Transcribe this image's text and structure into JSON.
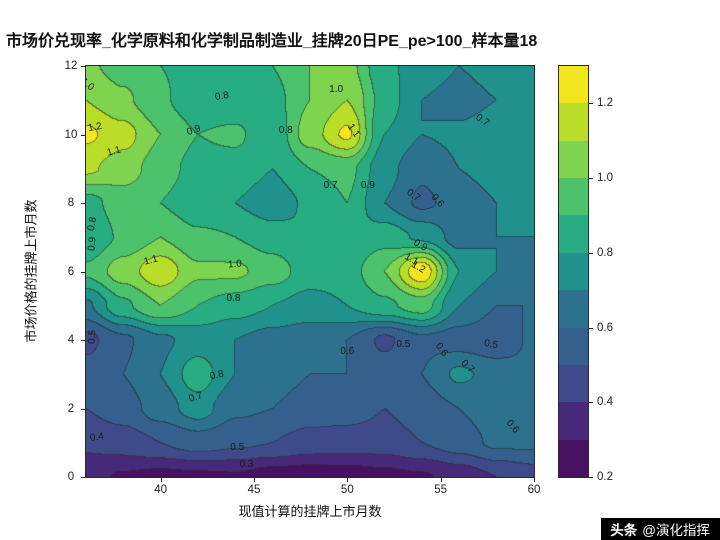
{
  "title": "市场价兑现率_化学原料和化学制品制造业_挂牌20日PE_pe>100_样本量18",
  "watermark": {
    "brand": "头条",
    "handle": "@演化指挥"
  },
  "chart_data": {
    "type": "heatmap",
    "subtype": "filled-contour",
    "title": "市场价兑现率_化学原料和化学制品制造业_挂牌20日PE_pe>100_样本量18",
    "xlabel": "现值计算的挂牌上市月数",
    "ylabel": "市场价格的挂牌上市月数",
    "xlim": [
      36,
      60
    ],
    "ylim": [
      0,
      12
    ],
    "xticks": [
      40,
      45,
      50,
      55,
      60
    ],
    "yticks": [
      0,
      2,
      4,
      6,
      8,
      10,
      12
    ],
    "x": [
      36,
      38,
      40,
      42,
      44,
      46,
      48,
      50,
      52,
      54,
      56,
      58,
      60
    ],
    "y": [
      0,
      1,
      2,
      3,
      4,
      5,
      6,
      7,
      8,
      9,
      10,
      11,
      12
    ],
    "z": [
      [
        0.33,
        0.29,
        0.27,
        0.28,
        0.29,
        0.25,
        0.24,
        0.25,
        0.27,
        0.29,
        0.34,
        0.4,
        0.45
      ],
      [
        0.42,
        0.45,
        0.5,
        0.55,
        0.52,
        0.5,
        0.46,
        0.45,
        0.45,
        0.5,
        0.55,
        0.62,
        0.62
      ],
      [
        0.5,
        0.55,
        0.65,
        0.75,
        0.62,
        0.6,
        0.56,
        0.55,
        0.5,
        0.55,
        0.6,
        0.66,
        0.7
      ],
      [
        0.54,
        0.6,
        0.7,
        0.86,
        0.7,
        0.64,
        0.6,
        0.6,
        0.55,
        0.6,
        0.72,
        0.66,
        0.62
      ],
      [
        0.47,
        0.58,
        0.68,
        0.74,
        0.7,
        0.66,
        0.64,
        0.6,
        0.48,
        0.58,
        0.55,
        0.52,
        0.62
      ],
      [
        0.68,
        0.88,
        1.0,
        0.9,
        0.85,
        0.8,
        0.76,
        0.8,
        0.88,
        0.95,
        0.7,
        0.6,
        0.6
      ],
      [
        0.92,
        1.05,
        1.17,
        1.02,
        1.02,
        0.95,
        0.85,
        0.85,
        1.0,
        1.28,
        0.8,
        0.7,
        0.64
      ],
      [
        0.8,
        0.92,
        1.0,
        0.92,
        0.9,
        0.85,
        0.8,
        0.8,
        0.86,
        0.78,
        0.66,
        0.7,
        0.7
      ],
      [
        0.86,
        0.95,
        0.9,
        0.82,
        0.8,
        0.74,
        0.82,
        0.9,
        0.7,
        0.58,
        0.64,
        0.7,
        0.74
      ],
      [
        1.12,
        1.05,
        0.95,
        0.86,
        0.86,
        0.8,
        0.9,
        0.93,
        0.74,
        0.62,
        0.7,
        0.74,
        0.78
      ],
      [
        1.22,
        1.14,
        1.0,
        0.9,
        0.92,
        0.82,
        1.05,
        1.22,
        0.8,
        0.7,
        0.72,
        0.76,
        0.8
      ],
      [
        1.1,
        1.02,
        0.92,
        0.82,
        0.82,
        0.86,
        1.0,
        1.1,
        0.86,
        0.7,
        0.66,
        0.7,
        0.74
      ],
      [
        1.02,
        0.96,
        0.9,
        0.86,
        0.8,
        0.9,
        1.0,
        1.04,
        0.82,
        0.76,
        0.7,
        0.74,
        0.8
      ]
    ],
    "levels": [
      0.2,
      0.3,
      0.4,
      0.5,
      0.6,
      0.7,
      0.8,
      0.9,
      1.0,
      1.1,
      1.2,
      1.3
    ],
    "band_colors": [
      "#471063",
      "#482878",
      "#3f4a8a",
      "#35608d",
      "#2c728e",
      "#21918d",
      "#27ad81",
      "#4cc26c",
      "#7ed34f",
      "#bade28",
      "#f4e61e"
    ],
    "line_color_rgb": [
      35,
      35,
      35
    ],
    "line_alpha": 0.55,
    "colorbar": {
      "min": 0.2,
      "max": 1.3,
      "ticks": [
        "0.2",
        "0.4",
        "0.6",
        "0.8",
        "1.0",
        "1.2"
      ]
    },
    "contour_labels": [
      {
        "t": "1.0",
        "x": 36.05,
        "y": 11.45,
        "r": -40
      },
      {
        "t": "0.8",
        "x": 43.3,
        "y": 11.1,
        "r": 10
      },
      {
        "t": "1.0",
        "x": 49.4,
        "y": 11.3,
        "r": 0
      },
      {
        "t": "0.7",
        "x": 57.2,
        "y": 10.4,
        "r": -35
      },
      {
        "t": "1.2",
        "x": 36.5,
        "y": 10.2,
        "r": 10
      },
      {
        "t": "1.1",
        "x": 37.5,
        "y": 9.5,
        "r": 15
      },
      {
        "t": "0.9",
        "x": 41.8,
        "y": 10.1,
        "r": 20
      },
      {
        "t": "0.8",
        "x": 46.7,
        "y": 10.1,
        "r": 0
      },
      {
        "t": "1.1",
        "x": 50.3,
        "y": 10.1,
        "r": -55
      },
      {
        "t": "0.7",
        "x": 49.1,
        "y": 8.5,
        "r": 0
      },
      {
        "t": "0.9",
        "x": 51.1,
        "y": 8.5,
        "r": 0
      },
      {
        "t": "0.7",
        "x": 53.5,
        "y": 8.2,
        "r": -35
      },
      {
        "t": "0.6",
        "x": 54.8,
        "y": 8.05,
        "r": -50
      },
      {
        "t": "0.8",
        "x": 36.35,
        "y": 7.4,
        "r": 80
      },
      {
        "t": "0.9",
        "x": 36.35,
        "y": 6.8,
        "r": 85
      },
      {
        "t": "1.1",
        "x": 39.5,
        "y": 6.3,
        "r": 15
      },
      {
        "t": "1.0",
        "x": 44.0,
        "y": 6.2,
        "r": 5
      },
      {
        "t": "0.9",
        "x": 53.9,
        "y": 6.75,
        "r": -30
      },
      {
        "t": "1.1",
        "x": 53.4,
        "y": 6.35,
        "r": -30
      },
      {
        "t": "1.2",
        "x": 53.8,
        "y": 6.1,
        "r": -30
      },
      {
        "t": "0.8",
        "x": 43.9,
        "y": 5.2,
        "r": 0
      },
      {
        "t": "0.5",
        "x": 36.35,
        "y": 4.1,
        "r": 85
      },
      {
        "t": "0.6",
        "x": 50.0,
        "y": 3.65,
        "r": 0
      },
      {
        "t": "0.5",
        "x": 53.0,
        "y": 3.85,
        "r": 0
      },
      {
        "t": "0.6",
        "x": 55.0,
        "y": 3.7,
        "r": -55
      },
      {
        "t": "0.5",
        "x": 57.7,
        "y": 3.85,
        "r": -10
      },
      {
        "t": "0.7",
        "x": 56.4,
        "y": 3.2,
        "r": -45
      },
      {
        "t": "0.8",
        "x": 43.0,
        "y": 2.95,
        "r": 12
      },
      {
        "t": "0.7",
        "x": 41.9,
        "y": 2.3,
        "r": 18
      },
      {
        "t": "0.4",
        "x": 36.6,
        "y": 1.15,
        "r": 8
      },
      {
        "t": "0.5",
        "x": 44.1,
        "y": 0.85,
        "r": 0
      },
      {
        "t": "0.3",
        "x": 44.6,
        "y": 0.35,
        "r": 0
      },
      {
        "t": "0.6",
        "x": 58.8,
        "y": 1.45,
        "r": -50
      }
    ]
  }
}
